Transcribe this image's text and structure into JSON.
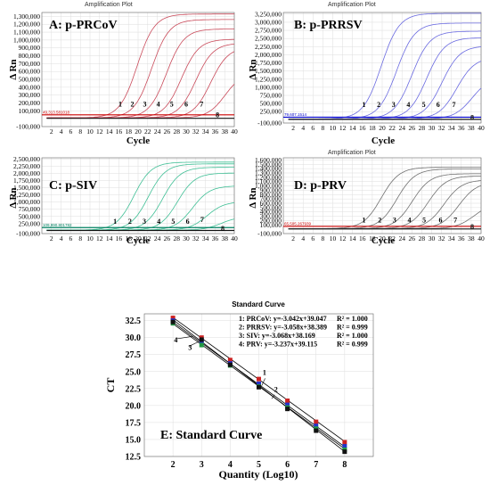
{
  "chart_data": [
    {
      "type": "line",
      "header": "Amplification Plot",
      "panel_label": "A: p-PRCoV",
      "xlabel": "Cycle",
      "ylabel": "Δ Rn",
      "x_ticks": [
        2,
        4,
        6,
        8,
        10,
        12,
        14,
        16,
        18,
        20,
        22,
        24,
        26,
        28,
        30,
        32,
        34,
        36,
        38,
        40
      ],
      "xlim": [
        0,
        40
      ],
      "ylim": [
        -100000,
        1350000
      ],
      "y_ticks": [
        -100000,
        100000,
        200000,
        300000,
        400000,
        500000,
        600000,
        700000,
        800000,
        900000,
        1000000,
        1100000,
        1200000,
        1300000
      ],
      "y_tick_labels": [
        "-100,000",
        "100,000",
        "200,000",
        "300,000",
        "400,000",
        "500,000",
        "600,000",
        "700,000",
        "800,000",
        "900,000",
        "1,000,000",
        "1,100,000",
        "1,200,000",
        "1,300,000"
      ],
      "curve_color": "#c94a5a",
      "threshold_color": "#cc0000",
      "threshold": 49313,
      "threshold_label": "49,313.581018",
      "curve_labels": [
        "1",
        "2",
        "3",
        "4",
        "5",
        "6",
        "7",
        "8"
      ],
      "label_x": [
        16.3,
        18.8,
        21.4,
        24.2,
        27.0,
        30.0,
        33.2,
        36.5
      ],
      "label_y": [
        155000,
        155000,
        155000,
        155000,
        155000,
        155000,
        155000,
        20000
      ],
      "series": [
        {
          "name": "1",
          "ct": 16.6,
          "plateau": 1320000
        },
        {
          "name": "2",
          "ct": 19.6,
          "plateau": 1250000
        },
        {
          "name": "3",
          "ct": 22.7,
          "plateau": 1130000
        },
        {
          "name": "4",
          "ct": 25.8,
          "plateau": 1000000
        },
        {
          "name": "5",
          "ct": 28.8,
          "plateau": 950000
        },
        {
          "name": "6",
          "ct": 31.9,
          "plateau": 900000
        },
        {
          "name": "7",
          "ct": 34.9,
          "plateau": 580000
        },
        {
          "name": "8",
          "ct": null,
          "plateau": 0
        }
      ]
    },
    {
      "type": "line",
      "header": "Amplification Plot",
      "panel_label": "B: p-PRRSV",
      "xlabel": "Cycle",
      "ylabel": "Δ Rn",
      "x_ticks": [
        2,
        4,
        6,
        8,
        10,
        12,
        14,
        16,
        18,
        20,
        22,
        24,
        26,
        28,
        30,
        32,
        34,
        36,
        38,
        40
      ],
      "xlim": [
        0,
        40
      ],
      "ylim": [
        -100000,
        3300000
      ],
      "y_ticks": [
        -100000,
        250000,
        500000,
        750000,
        1000000,
        1250000,
        1500000,
        1750000,
        2000000,
        2250000,
        2500000,
        2750000,
        3000000,
        3250000
      ],
      "y_tick_labels": [
        "-100,000",
        "250,000",
        "500,000",
        "750,000",
        "1,000,000",
        "1,250,000",
        "1,500,000",
        "1,750,000",
        "2,000,000",
        "2,250,000",
        "2,500,000",
        "2,750,000",
        "3,000,000",
        "3,250,000"
      ],
      "curve_color": "#6a6ae0",
      "threshold_color": "#0000cc",
      "threshold": 79607,
      "threshold_label": "79,607.1514",
      "curve_labels": [
        "1",
        "2",
        "3",
        "4",
        "5",
        "6",
        "7",
        "8"
      ],
      "label_x": [
        16.3,
        19.3,
        22.3,
        25.3,
        28.4,
        31.3,
        34.5,
        38.2
      ],
      "label_y": [
        400000,
        400000,
        400000,
        400000,
        400000,
        400000,
        400000,
        0
      ],
      "series": [
        {
          "name": "1",
          "ct": 16.6,
          "plateau": 3250000
        },
        {
          "name": "2",
          "ct": 19.7,
          "plateau": 2950000
        },
        {
          "name": "3",
          "ct": 22.8,
          "plateau": 2700000
        },
        {
          "name": "4",
          "ct": 25.8,
          "plateau": 2500000
        },
        {
          "name": "5",
          "ct": 28.9,
          "plateau": 2250000
        },
        {
          "name": "6",
          "ct": 31.9,
          "plateau": 1900000
        },
        {
          "name": "7",
          "ct": 35.0,
          "plateau": 1300000
        },
        {
          "name": "8",
          "ct": null,
          "plateau": 0
        }
      ]
    },
    {
      "type": "line",
      "header": "",
      "panel_label": "C: p-SIV",
      "xlabel": "Cycle",
      "ylabel": "Δ Rn",
      "x_ticks": [
        2,
        4,
        6,
        8,
        10,
        12,
        14,
        16,
        18,
        20,
        22,
        24,
        26,
        28,
        30,
        32,
        34,
        36,
        38,
        40
      ],
      "xlim": [
        0,
        40
      ],
      "ylim": [
        -100000,
        2550000
      ],
      "y_ticks": [
        -100000,
        250000,
        500000,
        750000,
        1000000,
        1250000,
        1500000,
        1750000,
        2000000,
        2250000,
        2500000
      ],
      "y_tick_labels": [
        "-100,000",
        "250,000",
        "500,000",
        "750,000",
        "1,000,000",
        "1,250,000",
        "1,500,000",
        "1,750,000",
        "2,000,000",
        "2,250,000",
        "2,500,000"
      ],
      "curve_color": "#3fbf95",
      "threshold_color": "#008060",
      "threshold": 109990,
      "threshold_label": "109,990.801782",
      "curve_labels": [
        "1",
        "2",
        "3",
        "4",
        "5",
        "6",
        "7",
        "8"
      ],
      "label_x": [
        15.2,
        18.3,
        21.3,
        24.3,
        27.3,
        30.3,
        33.3,
        37.6
      ],
      "label_y": [
        250000,
        250000,
        250000,
        250000,
        250000,
        250000,
        300000,
        0
      ],
      "series": [
        {
          "name": "1",
          "ct": 15.9,
          "plateau": 2380000
        },
        {
          "name": "2",
          "ct": 18.9,
          "plateau": 2320000
        },
        {
          "name": "3",
          "ct": 21.9,
          "plateau": 2200000
        },
        {
          "name": "4",
          "ct": 25.0,
          "plateau": 2000000
        },
        {
          "name": "5",
          "ct": 28.1,
          "plateau": 1550000
        },
        {
          "name": "6",
          "ct": 31.1,
          "plateau": 1000000
        },
        {
          "name": "7",
          "ct": 34.1,
          "plateau": 480000
        },
        {
          "name": "8",
          "ct": null,
          "plateau": 0
        }
      ]
    },
    {
      "type": "line",
      "header": "Amplification Plot",
      "panel_label": "D: p-PRV",
      "xlabel": "Cycle",
      "ylabel": "Δ Rn",
      "x_ticks": [
        2,
        4,
        6,
        8,
        10,
        12,
        14,
        16,
        18,
        20,
        22,
        24,
        26,
        28,
        30,
        32,
        34,
        36,
        38,
        40
      ],
      "xlim": [
        0,
        40
      ],
      "ylim": [
        -100000,
        1650000
      ],
      "y_ticks": [
        -100000,
        100000,
        200000,
        300000,
        400000,
        500000,
        600000,
        700000,
        800000,
        900000,
        1000000,
        1100000,
        1200000,
        1300000,
        1400000,
        1500000,
        1600000
      ],
      "y_tick_labels": [
        "-100,000",
        "100,000",
        "200,000",
        "300,000",
        "400,000",
        "500,000",
        "600,000",
        "700,000",
        "800,000",
        "900,000",
        "1,000,000",
        "1,100,000",
        "1,200,000",
        "1,300,000",
        "1,400,000",
        "1,500,000",
        "1,600,000"
      ],
      "curve_color": "#707070",
      "threshold_color": "#cc0000",
      "threshold": 65505,
      "threshold_label": "65,505.267939",
      "curve_labels": [
        "1",
        "2",
        "3",
        "4",
        "5",
        "6",
        "7",
        "8"
      ],
      "label_x": [
        16.3,
        19.5,
        22.5,
        25.5,
        28.5,
        31.8,
        34.8,
        38.2
      ],
      "label_y": [
        155000,
        155000,
        155000,
        155000,
        155000,
        155000,
        155000,
        0
      ],
      "series": [
        {
          "name": "1",
          "ct": 16.6,
          "plateau": 1420000
        },
        {
          "name": "2",
          "ct": 19.8,
          "plateau": 1380000
        },
        {
          "name": "3",
          "ct": 22.9,
          "plateau": 1270000
        },
        {
          "name": "4",
          "ct": 26.1,
          "plateau": 1220000
        },
        {
          "name": "5",
          "ct": 29.3,
          "plateau": 1130000
        },
        {
          "name": "6",
          "ct": 32.3,
          "plateau": 1080000
        },
        {
          "name": "7",
          "ct": 35.4,
          "plateau": 600000
        },
        {
          "name": "8",
          "ct": null,
          "plateau": 0
        }
      ]
    },
    {
      "type": "scatter",
      "title": "Standard Curve",
      "panel_label": "E: Standard Curve",
      "xlabel": "Quantity (Log10)",
      "ylabel": "CT",
      "x_ticks": [
        2,
        3,
        4,
        5,
        6,
        7,
        8
      ],
      "xlim": [
        1,
        9
      ],
      "ylim": [
        12.5,
        33.5
      ],
      "y_ticks": [
        12.5,
        15.0,
        17.5,
        20.0,
        22.5,
        25.0,
        27.5,
        30.0,
        32.5
      ],
      "y_tick_labels": [
        "12.5",
        "15.0",
        "17.5",
        "20.0",
        "22.5",
        "25.0",
        "27.5",
        "30.0",
        "32.5"
      ],
      "equations": [
        {
          "label": "1: PRCoV: y=-3.042x+39.047",
          "r2": "R² = 1.000"
        },
        {
          "label": "2: PRRSV: y=-3.058x+38.389",
          "r2": "R² = 0.999"
        },
        {
          "label": "3: SIV: y=-3.068x+38.169",
          "r2": "R² = 1.000"
        },
        {
          "label": "4: PRV: y=-3.237x+39.115",
          "r2": "R² = 0.999"
        }
      ],
      "line_labels": [
        {
          "text": "1",
          "x": 5.2,
          "y": 24.5
        },
        {
          "text": "2",
          "x": 5.6,
          "y": 22.0
        },
        {
          "text": "3",
          "x": 2.6,
          "y": 28.2
        },
        {
          "text": "4",
          "x": 2.1,
          "y": 29.3
        }
      ],
      "series": [
        {
          "name": "1",
          "slope": -3.042,
          "intercept": 39.047,
          "color": "#000000"
        },
        {
          "name": "2",
          "slope": -3.058,
          "intercept": 38.389,
          "color": "#000000"
        },
        {
          "name": "3",
          "slope": -3.068,
          "intercept": 38.169,
          "color": "#000000"
        },
        {
          "name": "4",
          "slope": -3.237,
          "intercept": 39.115,
          "color": "#000000"
        }
      ],
      "points": [
        {
          "x": 2,
          "y": 32.9,
          "color": "#cc2222"
        },
        {
          "x": 2,
          "y": 32.5,
          "color": "#2233cc"
        },
        {
          "x": 2,
          "y": 32.1,
          "color": "#229944"
        },
        {
          "x": 2,
          "y": 32.3,
          "color": "#111111"
        },
        {
          "x": 3,
          "y": 30.0,
          "color": "#cc2222"
        },
        {
          "x": 3,
          "y": 29.5,
          "color": "#2233cc"
        },
        {
          "x": 3,
          "y": 28.9,
          "color": "#229944"
        },
        {
          "x": 3,
          "y": 29.7,
          "color": "#111111"
        },
        {
          "x": 4,
          "y": 26.7,
          "color": "#cc2222"
        },
        {
          "x": 4,
          "y": 26.2,
          "color": "#2233cc"
        },
        {
          "x": 4,
          "y": 25.9,
          "color": "#229944"
        },
        {
          "x": 4,
          "y": 26.0,
          "color": "#111111"
        },
        {
          "x": 5,
          "y": 23.9,
          "color": "#cc2222"
        },
        {
          "x": 5,
          "y": 23.2,
          "color": "#2233cc"
        },
        {
          "x": 5,
          "y": 22.8,
          "color": "#229944"
        },
        {
          "x": 5,
          "y": 22.7,
          "color": "#111111"
        },
        {
          "x": 6,
          "y": 20.7,
          "color": "#cc2222"
        },
        {
          "x": 6,
          "y": 20.1,
          "color": "#2233cc"
        },
        {
          "x": 6,
          "y": 19.7,
          "color": "#229944"
        },
        {
          "x": 6,
          "y": 19.5,
          "color": "#111111"
        },
        {
          "x": 7,
          "y": 17.6,
          "color": "#cc2222"
        },
        {
          "x": 7,
          "y": 17.0,
          "color": "#2233cc"
        },
        {
          "x": 7,
          "y": 16.6,
          "color": "#229944"
        },
        {
          "x": 7,
          "y": 16.3,
          "color": "#111111"
        },
        {
          "x": 8,
          "y": 14.6,
          "color": "#cc2222"
        },
        {
          "x": 8,
          "y": 14.0,
          "color": "#2233cc"
        },
        {
          "x": 8,
          "y": 13.5,
          "color": "#229944"
        },
        {
          "x": 8,
          "y": 13.2,
          "color": "#111111"
        }
      ]
    }
  ]
}
